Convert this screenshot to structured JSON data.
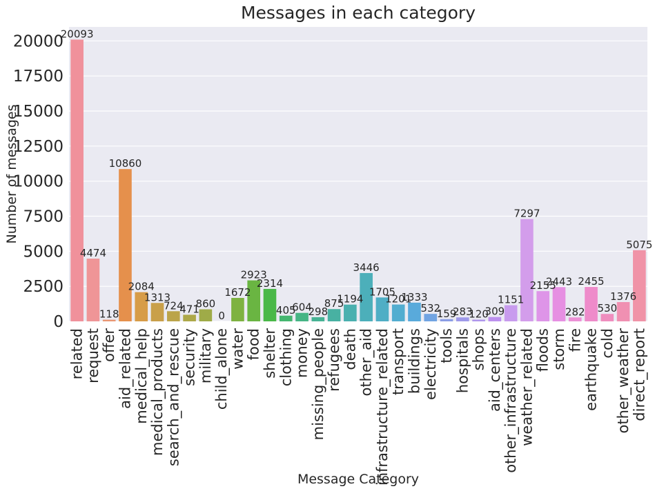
{
  "chart_data": {
    "type": "bar",
    "title": "Messages in each category",
    "xlabel": "Message Category",
    "ylabel": "Number of messages",
    "ylim": [
      0,
      21000
    ],
    "yticks": [
      0,
      2500,
      5000,
      7500,
      10000,
      12500,
      15000,
      17500,
      20000
    ],
    "grid": true,
    "categories": [
      "related",
      "request",
      "offer",
      "aid_related",
      "medical_help",
      "medical_products",
      "search_and_rescue",
      "security",
      "military",
      "child_alone",
      "water",
      "food",
      "shelter",
      "clothing",
      "money",
      "missing_people",
      "refugees",
      "death",
      "other_aid",
      "infrastructure_related",
      "transport",
      "buildings",
      "electricity",
      "tools",
      "hospitals",
      "shops",
      "aid_centers",
      "other_infrastructure",
      "weather_related",
      "floods",
      "storm",
      "fire",
      "earthquake",
      "cold",
      "other_weather",
      "direct_report"
    ],
    "values": [
      20093,
      4474,
      118,
      10860,
      2084,
      1313,
      724,
      471,
      860,
      0,
      1672,
      2923,
      2314,
      405,
      604,
      298,
      875,
      1194,
      3446,
      1705,
      1201,
      1333,
      532,
      159,
      283,
      120,
      309,
      1151,
      7297,
      2155,
      2443,
      282,
      2455,
      530,
      1376,
      5075
    ],
    "colors": [
      "#F0919B",
      "#EF9597",
      "#E99672",
      "#E5904C",
      "#D79C48",
      "#C9A04A",
      "#BBA44A",
      "#ADA849",
      "#9FAB48",
      "#8FAE46",
      "#7EB241",
      "#6AB542",
      "#4AB848",
      "#45B670",
      "#46B585",
      "#47B394",
      "#48B1A2",
      "#4AB0AF",
      "#4CAFBA",
      "#4FAEC5",
      "#52ADD0",
      "#59AADB",
      "#71A4E2",
      "#8A9DE5",
      "#9E99E9",
      "#AE95EC",
      "#BC90EE",
      "#C89BEE",
      "#D39DEB",
      "#DE95E8",
      "#E68FE2",
      "#EC90D6",
      "#EE8BCA",
      "#EF8DBE",
      "#F090B2",
      "#F093A7"
    ]
  }
}
